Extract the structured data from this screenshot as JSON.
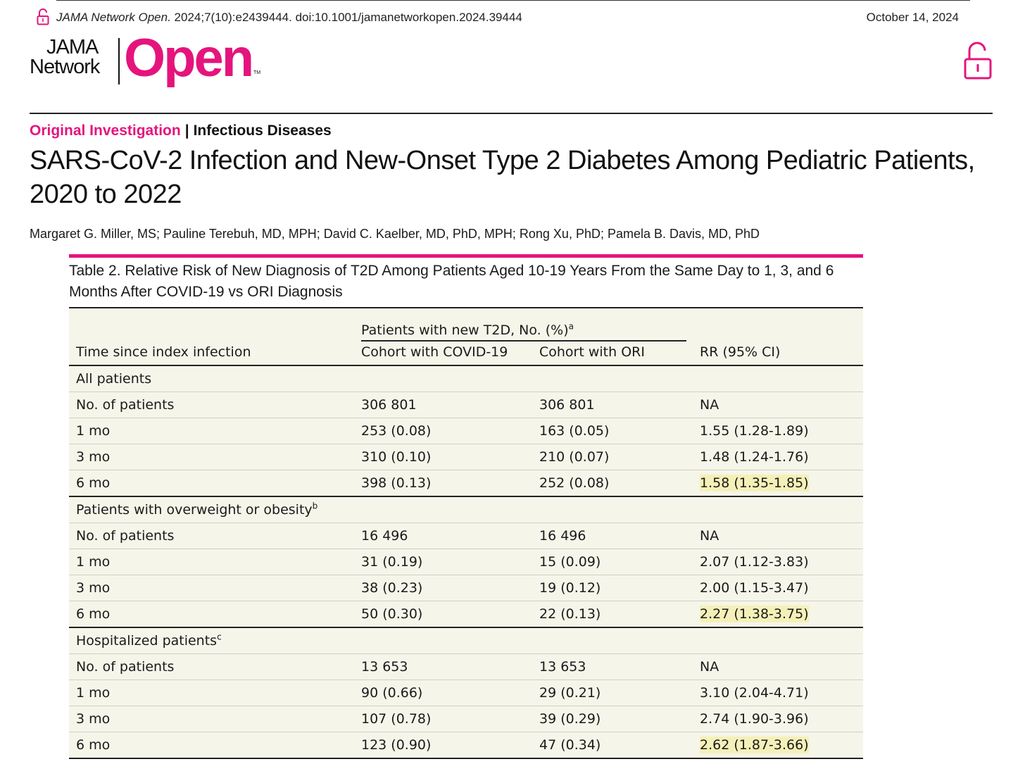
{
  "header": {
    "citation_journal": "JAMA Network Open.",
    "citation_rest": " 2024;7(10):e2439444. doi:10.1001/jamanetworkopen.2024.39444",
    "date": "October 14, 2024"
  },
  "logo": {
    "line1": "JAMA",
    "line2": "Network",
    "open": "Open",
    "tm": "TM"
  },
  "colors": {
    "brand": "#e5147d",
    "highlight": "#f5f0b8",
    "table_bg": "#f5f5ea"
  },
  "article": {
    "type": "Original Investigation",
    "separator": "|",
    "subject": "Infectious Diseases",
    "title": "SARS-CoV-2 Infection and New-Onset Type 2 Diabetes Among Pediatric Patients, 2020 to 2022",
    "authors": "Margaret G. Miller, MS; Pauline Terebuh, MD, MPH; David C. Kaelber, MD, PhD, MPH; Rong Xu, PhD; Pamela B. Davis, MD, PhD"
  },
  "table": {
    "caption": "Table 2. Relative Risk of New Diagnosis of T2D Among Patients Aged 10-19 Years From the Same Day to 1, 3, and 6 Months After COVID-19 vs ORI Diagnosis",
    "group_header": "Patients with new T2D, No. (%)",
    "group_header_sup": "a",
    "col_time": "Time since index infection",
    "col_covid": "Cohort with COVID-19",
    "col_ori": "Cohort with ORI",
    "col_rr": "RR (95% CI)",
    "sections": [
      {
        "label": "All patients",
        "sup": "",
        "rows": [
          {
            "time": "No. of patients",
            "covid": "306 801",
            "ori": "306 801",
            "rr": "NA"
          },
          {
            "time": "1 mo",
            "covid": "253 (0.08)",
            "ori": "163 (0.05)",
            "rr": "1.55 (1.28-1.89)"
          },
          {
            "time": "3 mo",
            "covid": "310 (0.10)",
            "ori": "210 (0.07)",
            "rr": "1.48 (1.24-1.76)"
          },
          {
            "time": "6 mo",
            "covid": "398 (0.13)",
            "ori": "252 (0.08)",
            "rr": "1.58 (1.35-1.85)"
          }
        ]
      },
      {
        "label": "Patients with overweight or obesity",
        "sup": "b",
        "rows": [
          {
            "time": "No. of patients",
            "covid": "16 496",
            "ori": "16 496",
            "rr": "NA"
          },
          {
            "time": "1 mo",
            "covid": "31 (0.19)",
            "ori": "15 (0.09)",
            "rr": "2.07 (1.12-3.83)"
          },
          {
            "time": "3 mo",
            "covid": "38 (0.23)",
            "ori": "19 (0.12)",
            "rr": "2.00 (1.15-3.47)"
          },
          {
            "time": "6 mo",
            "covid": "50 (0.30)",
            "ori": "22 (0.13)",
            "rr": "2.27 (1.38-3.75)"
          }
        ]
      },
      {
        "label": "Hospitalized patients",
        "sup": "c",
        "rows": [
          {
            "time": "No. of patients",
            "covid": "13 653",
            "ori": "13 653",
            "rr": "NA"
          },
          {
            "time": "1 mo",
            "covid": "90 (0.66)",
            "ori": "29 (0.21)",
            "rr": "3.10 (2.04-4.71)"
          },
          {
            "time": "3 mo",
            "covid": "107 (0.78)",
            "ori": "39 (0.29)",
            "rr": "2.74 (1.90-3.96)"
          },
          {
            "time": "6 mo",
            "covid": "123 (0.90)",
            "ori": "47 (0.34)",
            "rr": "2.62 (1.87-3.66)"
          }
        ]
      }
    ]
  }
}
